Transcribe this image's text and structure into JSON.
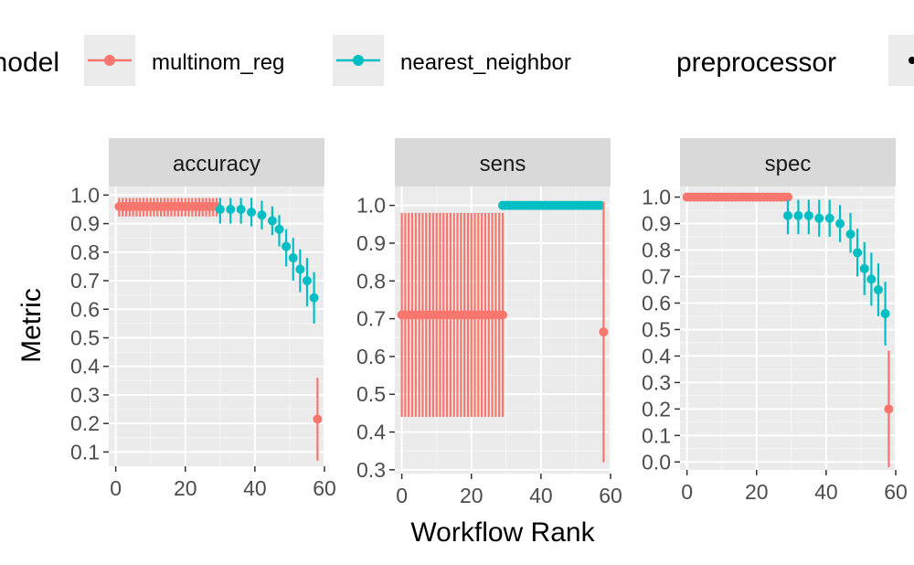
{
  "legend": {
    "model_title": "model",
    "model_entries": [
      {
        "label": "multinom_reg",
        "color": "#F8766D"
      },
      {
        "label": "nearest_neighbor",
        "color": "#00BFC4"
      }
    ],
    "preprocessor_title": "preprocessor"
  },
  "chart_data": {
    "type": "scatter",
    "xlabel": "Workflow Rank",
    "ylabel": "Metric",
    "grid": true,
    "legend_position": "top",
    "panels": [
      {
        "strip": "accuracy",
        "xlim": [
          -2,
          60
        ],
        "ylim": [
          0.05,
          1.03
        ],
        "x_ticks": [
          0,
          20,
          40,
          60
        ],
        "y_ticks": [
          0.1,
          0.2,
          0.3,
          0.4,
          0.5,
          0.6,
          0.7,
          0.8,
          0.9,
          1.0
        ],
        "y_tick_labels": [
          "0.1",
          "0.2",
          "0.3",
          "0.4",
          "0.5",
          "0.6",
          "0.7",
          "0.8",
          "0.9",
          "1.0"
        ],
        "series": [
          {
            "name": "multinom_reg",
            "x_range": [
              1,
              29
            ],
            "values": [
              0.96,
              0.96
            ],
            "lower": [
              0.925,
              0.925
            ],
            "upper": [
              0.99,
              0.99
            ]
          },
          {
            "name": "nearest_neighbor",
            "x": [
              30,
              33,
              36,
              39,
              42,
              45,
              47,
              49,
              51,
              53,
              55,
              57
            ],
            "values": [
              0.95,
              0.95,
              0.95,
              0.94,
              0.93,
              0.91,
              0.88,
              0.82,
              0.78,
              0.74,
              0.7,
              0.64
            ],
            "lower": [
              0.9,
              0.9,
              0.9,
              0.89,
              0.88,
              0.86,
              0.82,
              0.75,
              0.7,
              0.66,
              0.61,
              0.55
            ],
            "upper": [
              0.99,
              0.99,
              0.99,
              0.99,
              0.98,
              0.96,
              0.93,
              0.88,
              0.85,
              0.81,
              0.78,
              0.73
            ]
          },
          {
            "name": "multinom_reg",
            "x": [
              58
            ],
            "values": [
              0.215
            ],
            "lower": [
              0.07
            ],
            "upper": [
              0.36
            ]
          }
        ]
      },
      {
        "strip": "sens",
        "xlim": [
          -2,
          60
        ],
        "ylim": [
          0.29,
          1.05
        ],
        "x_ticks": [
          0,
          20,
          40,
          60
        ],
        "y_ticks": [
          0.3,
          0.4,
          0.5,
          0.6,
          0.7,
          0.8,
          0.9,
          1.0
        ],
        "y_tick_labels": [
          "0.3",
          "0.4",
          "0.5",
          "0.6",
          "0.7",
          "0.8",
          "0.9",
          "1.0"
        ],
        "series": [
          {
            "name": "multinom_reg",
            "x_range": [
              0,
              29
            ],
            "values": [
              0.71,
              0.71
            ],
            "lower": [
              0.44,
              0.44
            ],
            "upper": [
              0.98,
              0.98
            ]
          },
          {
            "name": "nearest_neighbor",
            "x_range": [
              29,
              57
            ],
            "values": [
              1.0,
              1.0
            ],
            "lower": [
              1.0,
              1.0
            ],
            "upper": [
              1.0,
              1.0
            ]
          },
          {
            "name": "multinom_reg",
            "x": [
              58
            ],
            "values": [
              0.665
            ],
            "lower": [
              0.32
            ],
            "upper": [
              1.01
            ]
          }
        ]
      },
      {
        "strip": "spec",
        "xlim": [
          -2,
          60
        ],
        "ylim": [
          -0.03,
          1.04
        ],
        "x_ticks": [
          0,
          20,
          40,
          60
        ],
        "y_ticks": [
          0.0,
          0.1,
          0.2,
          0.3,
          0.4,
          0.5,
          0.6,
          0.7,
          0.8,
          0.9,
          1.0
        ],
        "y_tick_labels": [
          "0.0",
          "0.1",
          "0.2",
          "0.3",
          "0.4",
          "0.5",
          "0.6",
          "0.7",
          "0.8",
          "0.9",
          "1.0"
        ],
        "series": [
          {
            "name": "multinom_reg",
            "x_range": [
              0,
              29
            ],
            "values": [
              1.0,
              1.0
            ],
            "lower": [
              1.0,
              1.0
            ],
            "upper": [
              1.0,
              1.0
            ]
          },
          {
            "name": "nearest_neighbor",
            "x": [
              29,
              32,
              35,
              38,
              41,
              44,
              47,
              49,
              51,
              53,
              55,
              57
            ],
            "values": [
              0.93,
              0.93,
              0.93,
              0.92,
              0.92,
              0.9,
              0.86,
              0.79,
              0.73,
              0.69,
              0.65,
              0.56
            ],
            "lower": [
              0.86,
              0.86,
              0.86,
              0.85,
              0.85,
              0.83,
              0.79,
              0.7,
              0.63,
              0.59,
              0.55,
              0.44
            ],
            "upper": [
              0.99,
              0.99,
              0.99,
              0.99,
              0.99,
              0.97,
              0.94,
              0.88,
              0.83,
              0.79,
              0.75,
              0.68
            ]
          },
          {
            "name": "multinom_reg",
            "x": [
              58
            ],
            "values": [
              0.2
            ],
            "lower": [
              -0.02
            ],
            "upper": [
              0.42
            ]
          }
        ]
      }
    ]
  }
}
